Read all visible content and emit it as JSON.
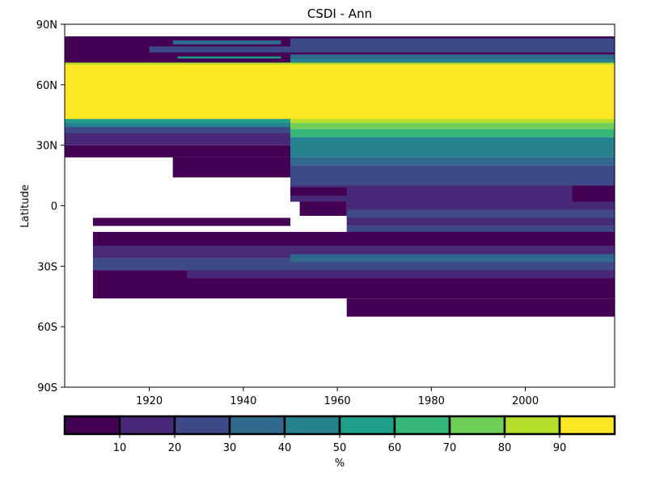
{
  "chart_data": {
    "type": "heatmap",
    "title": "CSDI - Ann",
    "xlabel": "",
    "ylabel": "Latitude",
    "xlim": [
      1902,
      2019
    ],
    "ylim": [
      -90,
      90
    ],
    "x_ticks": [
      {
        "value": 1920,
        "label": "1920"
      },
      {
        "value": 1940,
        "label": "1940"
      },
      {
        "value": 1960,
        "label": "1960"
      },
      {
        "value": 1980,
        "label": "1980"
      },
      {
        "value": 2000,
        "label": "2000"
      }
    ],
    "y_ticks": [
      {
        "value": 90,
        "label": "90N"
      },
      {
        "value": 60,
        "label": "60N"
      },
      {
        "value": 30,
        "label": "30N"
      },
      {
        "value": 0,
        "label": "0"
      },
      {
        "value": -30,
        "label": "30S"
      },
      {
        "value": -60,
        "label": "60S"
      },
      {
        "value": -90,
        "label": "90S"
      }
    ],
    "colorbar": {
      "label": "%",
      "bounds": [
        0,
        10,
        20,
        30,
        40,
        50,
        60,
        70,
        80,
        90,
        100
      ],
      "tick_labels": [
        "10",
        "20",
        "30",
        "40",
        "50",
        "60",
        "70",
        "80",
        "90"
      ],
      "colors": [
        "#440154",
        "#482878",
        "#3e4989",
        "#31688e",
        "#26828e",
        "#1f9e89",
        "#35b779",
        "#6ece58",
        "#b5de2b",
        "#fde725"
      ]
    },
    "cells": [
      {
        "lat": [
          70,
          84
        ],
        "years": [
          1902,
          2019
        ],
        "value": 5
      },
      {
        "lat": [
          68,
          71
        ],
        "years": [
          1902,
          2019
        ],
        "value": 85
      },
      {
        "lat": [
          76,
          79
        ],
        "years": [
          1920,
          2019
        ],
        "value": 25
      },
      {
        "lat": [
          72,
          75
        ],
        "years": [
          1902,
          2019
        ],
        "value": 5
      },
      {
        "lat": [
          71,
          73
        ],
        "years": [
          1950,
          2019
        ],
        "value": 45
      },
      {
        "lat": [
          73,
          75
        ],
        "years": [
          1950,
          2019
        ],
        "value": 35
      },
      {
        "lat": [
          79,
          83
        ],
        "years": [
          1950,
          2019
        ],
        "value": 25
      },
      {
        "lat": [
          73,
          74
        ],
        "years": [
          1926,
          1948
        ],
        "value": 55
      },
      {
        "lat": [
          80,
          82
        ],
        "years": [
          1925,
          1948
        ],
        "value": 35
      },
      {
        "lat": [
          42,
          70
        ],
        "years": [
          1902,
          2019
        ],
        "value": 95
      },
      {
        "lat": [
          40,
          43
        ],
        "years": [
          1902,
          1950
        ],
        "value": 55
      },
      {
        "lat": [
          38,
          41
        ],
        "years": [
          1902,
          1950
        ],
        "value": 45
      },
      {
        "lat": [
          35,
          39
        ],
        "years": [
          1902,
          1950
        ],
        "value": 25
      },
      {
        "lat": [
          30,
          36
        ],
        "years": [
          1902,
          1950
        ],
        "value": 15
      },
      {
        "lat": [
          24,
          30
        ],
        "years": [
          1902,
          1950
        ],
        "value": 5
      },
      {
        "lat": [
          41,
          43
        ],
        "years": [
          1950,
          2019
        ],
        "value": 85
      },
      {
        "lat": [
          38,
          41
        ],
        "years": [
          1950,
          2019
        ],
        "value": 75
      },
      {
        "lat": [
          34,
          38
        ],
        "years": [
          1950,
          2019
        ],
        "value": 65
      },
      {
        "lat": [
          29,
          32
        ],
        "years": [
          1981,
          2008
        ],
        "value": 85
      },
      {
        "lat": [
          27,
          29
        ],
        "years": [
          1981,
          2008
        ],
        "value": 65
      },
      {
        "lat": [
          24,
          34
        ],
        "years": [
          1950,
          2019
        ],
        "value": 45
      },
      {
        "lat": [
          20,
          24
        ],
        "years": [
          1950,
          2019
        ],
        "value": 35
      },
      {
        "lat": [
          14,
          24
        ],
        "years": [
          1925,
          1950
        ],
        "value": 5
      },
      {
        "lat": [
          8,
          20
        ],
        "years": [
          1950,
          2019
        ],
        "value": 25
      },
      {
        "lat": [
          2,
          10
        ],
        "years": [
          1950,
          2019
        ],
        "value": 15
      },
      {
        "lat": [
          2,
          10
        ],
        "years": [
          2010,
          2019
        ],
        "value": 5
      },
      {
        "lat": [
          5,
          9
        ],
        "years": [
          1950,
          1962
        ],
        "value": 5
      },
      {
        "lat": [
          -5,
          2
        ],
        "years": [
          1952,
          1962
        ],
        "value": 5
      },
      {
        "lat": [
          -10,
          2
        ],
        "years": [
          1962,
          2019
        ],
        "value": 15
      },
      {
        "lat": [
          -6,
          -2
        ],
        "years": [
          1962,
          2019
        ],
        "value": 25
      },
      {
        "lat": [
          -16,
          -10
        ],
        "years": [
          1962,
          2019
        ],
        "value": 25
      },
      {
        "lat": [
          -6,
          -10
        ],
        "years": [
          1908,
          1950
        ],
        "value": 5
      },
      {
        "lat": [
          -13,
          -20
        ],
        "years": [
          1908,
          2019
        ],
        "value": 5
      },
      {
        "lat": [
          -20,
          -26
        ],
        "years": [
          1908,
          2019
        ],
        "value": 15
      },
      {
        "lat": [
          -26,
          -32
        ],
        "years": [
          1908,
          2019
        ],
        "value": 25
      },
      {
        "lat": [
          -24,
          -28
        ],
        "years": [
          1950,
          2019
        ],
        "value": 35
      },
      {
        "lat": [
          -32,
          -46
        ],
        "years": [
          1908,
          2019
        ],
        "value": 5
      },
      {
        "lat": [
          -32,
          -36
        ],
        "years": [
          1928,
          2019
        ],
        "value": 15
      },
      {
        "lat": [
          -46,
          -55
        ],
        "years": [
          1962,
          2019
        ],
        "value": 5
      }
    ]
  }
}
